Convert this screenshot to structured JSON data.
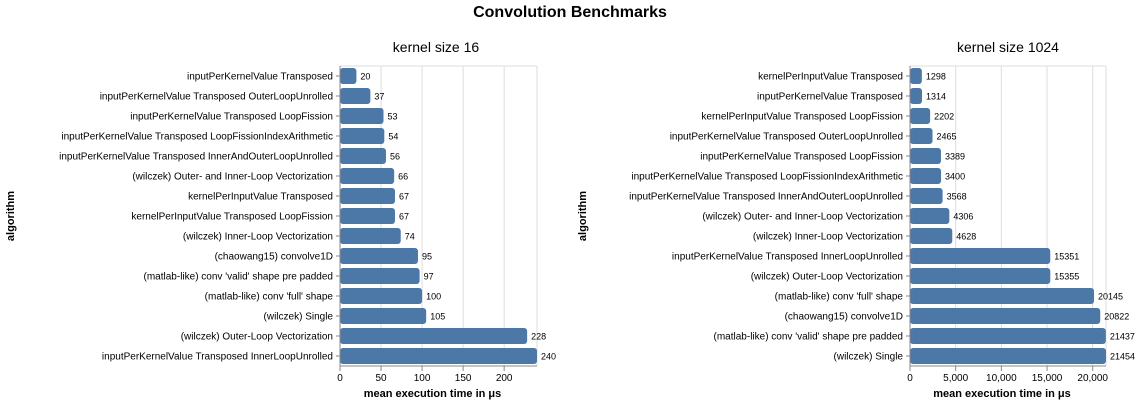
{
  "figure": {
    "title": "Convolution Benchmarks"
  },
  "chart_data": [
    {
      "type": "bar",
      "orientation": "horizontal",
      "title": "kernel size 16",
      "xlabel": "mean execution time in μs",
      "ylabel": "algorithm",
      "xlim": [
        0,
        240
      ],
      "xticks": [
        0,
        50,
        100,
        150,
        200
      ],
      "xtick_labels": [
        "0",
        "50",
        "100",
        "150",
        "200"
      ],
      "grid": true,
      "bar_color": "#4c78a8",
      "categories": [
        "inputPerKernelValue Transposed",
        "inputPerKernelValue Transposed OuterLoopUnrolled",
        "inputPerKernelValue Transposed LoopFission",
        "inputPerKernelValue Transposed LoopFissionIndexArithmetic",
        "inputPerKernelValue Transposed InnerAndOuterLoopUnrolled",
        "(wilczek) Outer- and Inner-Loop Vectorization",
        "kernelPerInputValue Transposed",
        "kernelPerInputValue Transposed LoopFission",
        "(wilczek) Inner-Loop Vectorization",
        "(chaowang15) convolve1D",
        "(matlab-like) conv 'valid' shape pre padded",
        "(matlab-like) conv 'full' shape",
        "(wilczek) Single",
        "(wilczek) Outer-Loop Vectorization",
        "inputPerKernelValue Transposed InnerLoopUnrolled"
      ],
      "values": [
        20,
        37,
        53,
        54,
        56,
        66,
        67,
        67,
        74,
        95,
        97,
        100,
        105,
        228,
        240
      ],
      "data_labels": [
        "20",
        "37",
        "53",
        "54",
        "56",
        "66",
        "67",
        "67",
        "74",
        "95",
        "97",
        "100",
        "105",
        "228",
        "240"
      ]
    },
    {
      "type": "bar",
      "orientation": "horizontal",
      "title": "kernel size 1024",
      "xlabel": "mean execution time in μs",
      "ylabel": "algorithm",
      "xlim": [
        0,
        21454
      ],
      "xticks": [
        0,
        5000,
        10000,
        15000,
        20000
      ],
      "xtick_labels": [
        "0",
        "5,000",
        "10,000",
        "15,000",
        "20,000"
      ],
      "grid": true,
      "bar_color": "#4c78a8",
      "categories": [
        "kernelPerInputValue Transposed",
        "inputPerKernelValue Transposed",
        "kernelPerInputValue Transposed LoopFission",
        "inputPerKernelValue Transposed OuterLoopUnrolled",
        "inputPerKernelValue Transposed LoopFission",
        "inputPerKernelValue Transposed LoopFissionIndexArithmetic",
        "inputPerKernelValue Transposed InnerAndOuterLoopUnrolled",
        "(wilczek) Outer- and Inner-Loop Vectorization",
        "(wilczek) Inner-Loop Vectorization",
        "inputPerKernelValue Transposed InnerLoopUnrolled",
        "(wilczek) Outer-Loop Vectorization",
        "(matlab-like) conv 'full' shape",
        "(chaowang15) convolve1D",
        "(matlab-like) conv 'valid' shape pre padded",
        "(wilczek) Single"
      ],
      "values": [
        1298,
        1314,
        2202,
        2465,
        3389,
        3400,
        3568,
        4306,
        4628,
        15351,
        15355,
        20145,
        20822,
        21437,
        21454
      ],
      "data_labels": [
        "1298",
        "1314",
        "2202",
        "2465",
        "3389",
        "3400",
        "3568",
        "4306",
        "4628",
        "15351",
        "15355",
        "20145",
        "20822",
        "21437",
        "21454"
      ]
    }
  ]
}
